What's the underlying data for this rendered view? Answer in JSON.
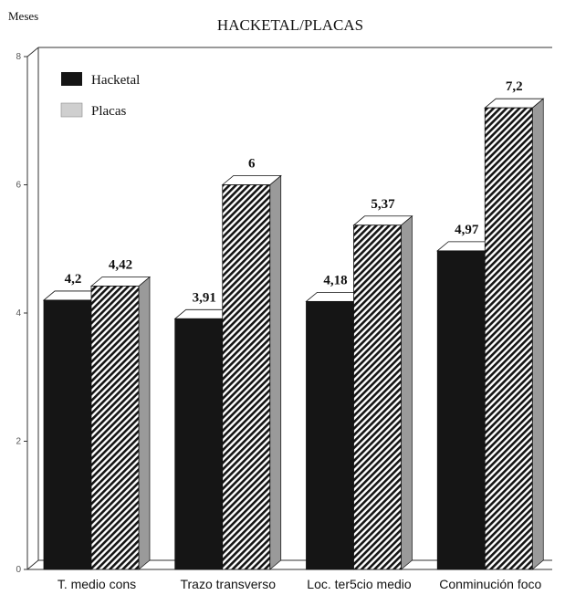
{
  "chart_data": {
    "type": "bar",
    "title": "HACKETAL/PLACAS",
    "ylabel": "Meses",
    "xlabel": "",
    "ylim": [
      0,
      8
    ],
    "yticks": [
      0,
      2,
      4,
      6,
      8
    ],
    "grid": false,
    "legend_position": "top-left",
    "categories": [
      "T. medio cons",
      "Trazo transverso",
      "Loc. ter5cio medio",
      "Conminución foco"
    ],
    "series": [
      {
        "name": "Hacketal",
        "values": [
          4.2,
          3.91,
          4.18,
          4.97
        ],
        "value_labels": [
          "4,2",
          "3,91",
          "4,18",
          "4,97"
        ],
        "color": "#151515",
        "pattern": "solid"
      },
      {
        "name": "Placas",
        "values": [
          4.42,
          6,
          5.37,
          7.2
        ],
        "value_labels": [
          "4,42",
          "6",
          "5,37",
          "7,2"
        ],
        "color": "#cfcfcf",
        "pattern": "diagonal-hatch"
      }
    ]
  }
}
